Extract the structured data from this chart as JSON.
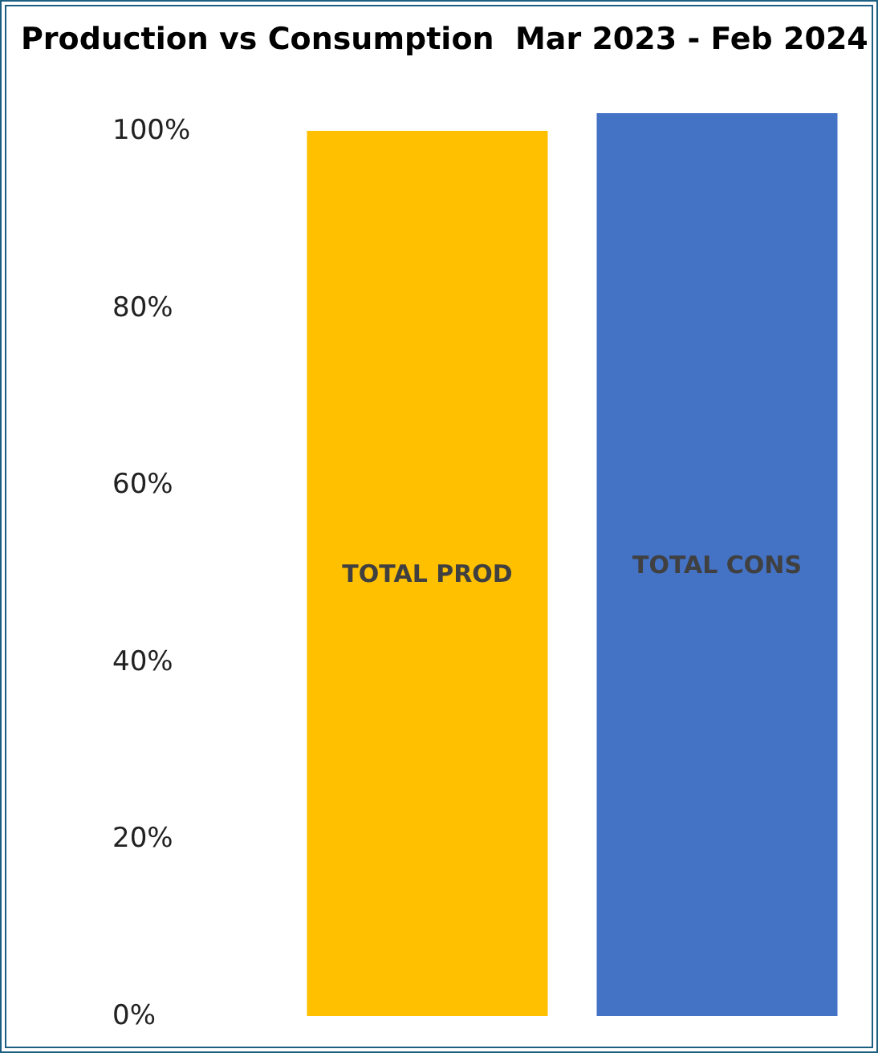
{
  "chart_data": {
    "type": "bar",
    "title": "Production vs Consumption  Mar 2023 - Feb 2024",
    "categories": [
      "TOTAL PROD",
      "TOTAL CONS"
    ],
    "values": [
      100,
      102
    ],
    "colors": [
      "#ffc000",
      "#4472c4"
    ],
    "ylim": [
      0,
      103
    ],
    "yticks": [
      {
        "value": 0,
        "label": "0%"
      },
      {
        "value": 20,
        "label": "20%"
      },
      {
        "value": 40,
        "label": "40%"
      },
      {
        "value": 60,
        "label": "60%"
      },
      {
        "value": 80,
        "label": "80%"
      },
      {
        "value": 100,
        "label": "100%"
      }
    ],
    "grid": false,
    "tick_labels": "y"
  }
}
